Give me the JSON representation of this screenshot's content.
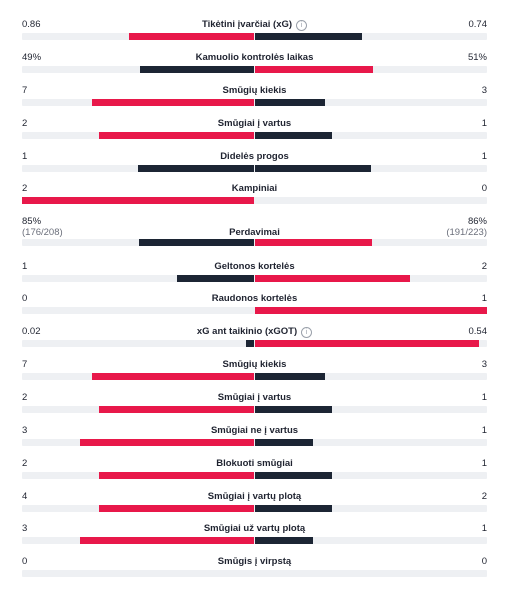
{
  "colors": {
    "home": "#e8184a",
    "away": "#1c2534",
    "win_away": "#1c2534",
    "neutral": "#1c2534"
  },
  "stats": [
    {
      "label": "Tikėtini įvarčiai (xG)",
      "info": true,
      "home": "0.86",
      "away": "0.74",
      "home_share": 0.54,
      "away_share": 0.46,
      "home_color": "#e8184a",
      "away_color": "#1c2534"
    },
    {
      "label": "Kamuolio kontrolės laikas",
      "home": "49%",
      "away": "51%",
      "home_share": 0.49,
      "away_share": 0.51,
      "home_color": "#1c2534",
      "away_color": "#e8184a"
    },
    {
      "label": "Smūgių kiekis",
      "home": "7",
      "away": "3",
      "home_share": 0.7,
      "away_share": 0.3,
      "home_color": "#e8184a",
      "away_color": "#1c2534"
    },
    {
      "label": "Smūgiai į vartus",
      "home": "2",
      "away": "1",
      "home_share": 0.6667,
      "away_share": 0.3333,
      "home_color": "#e8184a",
      "away_color": "#1c2534"
    },
    {
      "label": "Didelės progos",
      "home": "1",
      "away": "1",
      "home_share": 0.5,
      "away_share": 0.5,
      "home_color": "#1c2534",
      "away_color": "#1c2534"
    },
    {
      "label": "Kampiniai",
      "home": "2",
      "away": "0",
      "home_share": 1.0,
      "away_share": 0.0,
      "home_color": "#e8184a",
      "away_color": "#1c2534"
    },
    {
      "label": "Perdavimai",
      "home": "85%",
      "away": "86%",
      "home_sub": "(176/208)",
      "away_sub": "(191/223)",
      "home_share": 0.497,
      "away_share": 0.503,
      "home_color": "#1c2534",
      "away_color": "#e8184a"
    },
    {
      "label": "Geltonos kortelės",
      "home": "1",
      "away": "2",
      "home_share": 0.3333,
      "away_share": 0.6667,
      "home_color": "#1c2534",
      "away_color": "#e8184a"
    },
    {
      "label": "Raudonos kortelės",
      "home": "0",
      "away": "1",
      "home_share": 0.0,
      "away_share": 1.0,
      "home_color": "#1c2534",
      "away_color": "#e8184a"
    },
    {
      "label": "xG ant taikinio (xGOT)",
      "info": true,
      "home": "0.02",
      "away": "0.54",
      "home_share": 0.036,
      "away_share": 0.964,
      "home_color": "#1c2534",
      "away_color": "#e8184a"
    },
    {
      "label": "Smūgių kiekis",
      "home": "7",
      "away": "3",
      "home_share": 0.7,
      "away_share": 0.3,
      "home_color": "#e8184a",
      "away_color": "#1c2534"
    },
    {
      "label": "Smūgiai į vartus",
      "home": "2",
      "away": "1",
      "home_share": 0.6667,
      "away_share": 0.3333,
      "home_color": "#e8184a",
      "away_color": "#1c2534"
    },
    {
      "label": "Smūgiai ne į vartus",
      "home": "3",
      "away": "1",
      "home_share": 0.75,
      "away_share": 0.25,
      "home_color": "#e8184a",
      "away_color": "#1c2534"
    },
    {
      "label": "Blokuoti smūgiai",
      "home": "2",
      "away": "1",
      "home_share": 0.6667,
      "away_share": 0.3333,
      "home_color": "#e8184a",
      "away_color": "#1c2534"
    },
    {
      "label": "Smūgiai į vartų plotą",
      "home": "4",
      "away": "2",
      "home_share": 0.6667,
      "away_share": 0.3333,
      "home_color": "#e8184a",
      "away_color": "#1c2534"
    },
    {
      "label": "Smūgiai už vartų plotą",
      "home": "3",
      "away": "1",
      "home_share": 0.75,
      "away_share": 0.25,
      "home_color": "#e8184a",
      "away_color": "#1c2534"
    },
    {
      "label": "Smūgis į virpstą",
      "home": "0",
      "away": "0",
      "home_share": 0.0,
      "away_share": 0.0,
      "home_color": "#1c2534",
      "away_color": "#1c2534"
    }
  ]
}
